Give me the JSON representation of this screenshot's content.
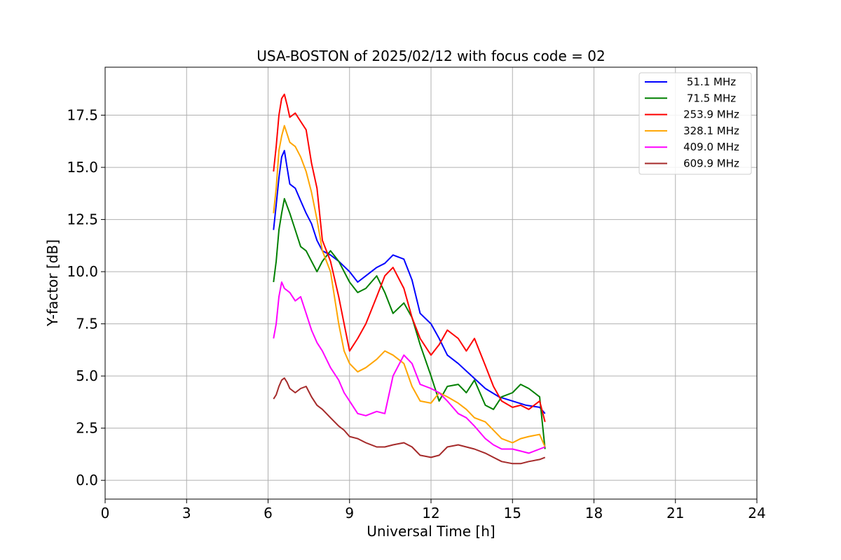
{
  "chart_data": {
    "type": "line",
    "title": "USA-BOSTON of 2025/02/12 with focus code = 02",
    "xlabel": "Universal Time [h]",
    "ylabel": "Y-factor [dB]",
    "xlim": [
      0,
      24
    ],
    "ylim": [
      -0.9,
      19.8
    ],
    "x_ticks": [
      "0",
      "3",
      "6",
      "9",
      "12",
      "15",
      "18",
      "21",
      "24"
    ],
    "y_ticks": [
      "0.0",
      "2.5",
      "5.0",
      "7.5",
      "10.0",
      "12.5",
      "15.0",
      "17.5"
    ],
    "grid": true,
    "legend_position": "top-right",
    "series": [
      {
        "name": " 51.1 MHz",
        "color": "#0000ff",
        "x": [
          6.2,
          6.3,
          6.4,
          6.5,
          6.6,
          6.7,
          6.8,
          7.0,
          7.2,
          7.4,
          7.6,
          7.8,
          8.0,
          8.3,
          8.6,
          9.0,
          9.3,
          9.6,
          10.0,
          10.3,
          10.6,
          11.0,
          11.3,
          11.6,
          12.0,
          12.3,
          12.6,
          13.0,
          13.5,
          14.0,
          14.5,
          15.0,
          15.5,
          16.0,
          16.2
        ],
        "y": [
          12.0,
          13.2,
          14.5,
          15.5,
          15.8,
          15.0,
          14.2,
          14.0,
          13.4,
          12.8,
          12.3,
          11.5,
          11.0,
          10.8,
          10.5,
          10.0,
          9.5,
          9.8,
          10.2,
          10.4,
          10.8,
          10.6,
          9.6,
          8.0,
          7.5,
          6.8,
          6.0,
          5.6,
          5.0,
          4.4,
          4.0,
          3.8,
          3.6,
          3.5,
          3.2
        ]
      },
      {
        "name": " 71.5 MHz",
        "color": "#008000",
        "x": [
          6.2,
          6.3,
          6.4,
          6.5,
          6.6,
          6.8,
          7.0,
          7.2,
          7.4,
          7.6,
          7.8,
          8.0,
          8.3,
          8.6,
          9.0,
          9.3,
          9.6,
          10.0,
          10.3,
          10.6,
          11.0,
          11.3,
          11.6,
          12.0,
          12.3,
          12.6,
          13.0,
          13.3,
          13.6,
          14.0,
          14.3,
          14.6,
          15.0,
          15.3,
          15.6,
          16.0,
          16.2
        ],
        "y": [
          9.5,
          10.5,
          12.0,
          12.8,
          13.5,
          12.8,
          12.0,
          11.2,
          11.0,
          10.5,
          10.0,
          10.5,
          11.0,
          10.5,
          9.5,
          9.0,
          9.2,
          9.8,
          9.0,
          8.0,
          8.5,
          7.8,
          6.5,
          5.0,
          3.8,
          4.5,
          4.6,
          4.2,
          4.8,
          3.6,
          3.4,
          4.0,
          4.2,
          4.6,
          4.4,
          4.0,
          1.5
        ]
      },
      {
        "name": "253.9 MHz",
        "color": "#ff0000",
        "x": [
          6.2,
          6.3,
          6.4,
          6.5,
          6.6,
          6.7,
          6.8,
          7.0,
          7.2,
          7.4,
          7.6,
          7.8,
          8.0,
          8.3,
          8.6,
          8.8,
          9.0,
          9.3,
          9.6,
          10.0,
          10.3,
          10.6,
          11.0,
          11.3,
          11.6,
          12.0,
          12.3,
          12.6,
          13.0,
          13.3,
          13.6,
          14.0,
          14.3,
          14.6,
          15.0,
          15.3,
          15.6,
          16.0,
          16.2
        ],
        "y": [
          14.8,
          16.0,
          17.5,
          18.3,
          18.5,
          18.0,
          17.4,
          17.6,
          17.2,
          16.8,
          15.2,
          14.0,
          11.5,
          10.5,
          8.8,
          7.5,
          6.2,
          6.8,
          7.5,
          8.8,
          9.8,
          10.2,
          9.2,
          7.8,
          6.8,
          6.0,
          6.5,
          7.2,
          6.8,
          6.2,
          6.8,
          5.5,
          4.5,
          3.8,
          3.5,
          3.6,
          3.4,
          3.8,
          2.8
        ]
      },
      {
        "name": "328.1 MHz",
        "color": "#ffa500",
        "x": [
          6.2,
          6.3,
          6.4,
          6.5,
          6.6,
          6.8,
          7.0,
          7.2,
          7.4,
          7.6,
          7.8,
          8.0,
          8.3,
          8.6,
          8.8,
          9.0,
          9.3,
          9.6,
          10.0,
          10.3,
          10.6,
          11.0,
          11.3,
          11.6,
          12.0,
          12.3,
          12.6,
          13.0,
          13.3,
          13.6,
          14.0,
          14.3,
          14.6,
          15.0,
          15.3,
          15.6,
          16.0,
          16.2
        ],
        "y": [
          12.8,
          14.0,
          15.8,
          16.5,
          17.0,
          16.2,
          16.0,
          15.5,
          14.8,
          13.8,
          12.5,
          11.0,
          10.0,
          7.5,
          6.2,
          5.6,
          5.2,
          5.4,
          5.8,
          6.2,
          6.0,
          5.6,
          4.5,
          3.8,
          3.7,
          4.2,
          4.0,
          3.7,
          3.4,
          3.0,
          2.8,
          2.4,
          2.0,
          1.8,
          2.0,
          2.1,
          2.2,
          1.6
        ]
      },
      {
        "name": "409.0 MHz",
        "color": "#ff00ff",
        "x": [
          6.2,
          6.3,
          6.4,
          6.5,
          6.6,
          6.8,
          7.0,
          7.2,
          7.4,
          7.6,
          7.8,
          8.0,
          8.3,
          8.6,
          8.8,
          9.0,
          9.3,
          9.6,
          10.0,
          10.3,
          10.6,
          11.0,
          11.3,
          11.6,
          12.0,
          12.3,
          12.6,
          13.0,
          13.3,
          13.6,
          14.0,
          14.3,
          14.6,
          15.0,
          15.3,
          15.6,
          16.0,
          16.2
        ],
        "y": [
          6.8,
          7.5,
          8.8,
          9.5,
          9.2,
          9.0,
          8.6,
          8.8,
          8.0,
          7.2,
          6.6,
          6.2,
          5.4,
          4.8,
          4.2,
          3.8,
          3.2,
          3.1,
          3.3,
          3.2,
          5.0,
          6.0,
          5.6,
          4.6,
          4.4,
          4.2,
          3.8,
          3.2,
          3.0,
          2.6,
          2.0,
          1.7,
          1.5,
          1.5,
          1.4,
          1.3,
          1.5,
          1.6
        ]
      },
      {
        "name": "609.9 MHz",
        "color": "#a52a2a",
        "x": [
          6.2,
          6.3,
          6.4,
          6.5,
          6.6,
          6.7,
          6.8,
          7.0,
          7.2,
          7.4,
          7.6,
          7.8,
          8.0,
          8.3,
          8.6,
          8.8,
          9.0,
          9.3,
          9.6,
          10.0,
          10.3,
          10.6,
          11.0,
          11.3,
          11.6,
          12.0,
          12.3,
          12.6,
          13.0,
          13.3,
          13.6,
          14.0,
          14.3,
          14.6,
          15.0,
          15.3,
          15.6,
          16.0,
          16.2
        ],
        "y": [
          3.9,
          4.1,
          4.5,
          4.8,
          4.9,
          4.7,
          4.4,
          4.2,
          4.4,
          4.5,
          4.0,
          3.6,
          3.4,
          3.0,
          2.6,
          2.4,
          2.1,
          2.0,
          1.8,
          1.6,
          1.6,
          1.7,
          1.8,
          1.6,
          1.2,
          1.1,
          1.2,
          1.6,
          1.7,
          1.6,
          1.5,
          1.3,
          1.1,
          0.9,
          0.8,
          0.8,
          0.9,
          1.0,
          1.1
        ]
      }
    ]
  }
}
